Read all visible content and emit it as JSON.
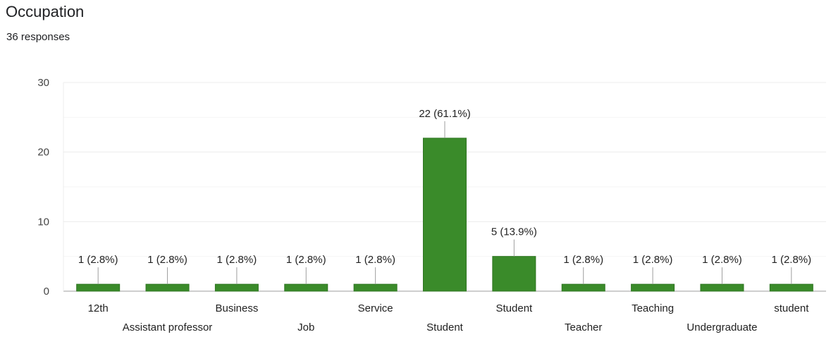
{
  "header": {
    "title": "Occupation",
    "subtitle": "36 responses"
  },
  "chart_data": {
    "type": "bar",
    "categories": [
      "12th",
      "Assistant professor",
      "Business",
      "Job",
      "Service",
      "Student",
      "Student ",
      "Teacher",
      "Teaching",
      "Undergraduate",
      "student"
    ],
    "values": [
      1,
      1,
      1,
      1,
      1,
      22,
      5,
      1,
      1,
      1,
      1
    ],
    "data_labels": [
      "1 (2.8%)",
      "1 (2.8%)",
      "1 (2.8%)",
      "1 (2.8%)",
      "1 (2.8%)",
      "22 (61.1%)",
      "5 (13.9%)",
      "1 (2.8%)",
      "1 (2.8%)",
      "1 (2.8%)",
      "1 (2.8%)"
    ],
    "title": "Occupation",
    "xlabel": "",
    "ylabel": "",
    "ylim": [
      0,
      30
    ],
    "yticks": [
      0,
      10,
      20,
      30
    ],
    "grid": true,
    "legend": "none",
    "colors": {
      "bar": "#3a8b2a",
      "bar_stroke": "#2f7522",
      "grid": "#ececec",
      "grid_minor": "#f5f5f5",
      "leader": "#9e9e9e"
    }
  }
}
